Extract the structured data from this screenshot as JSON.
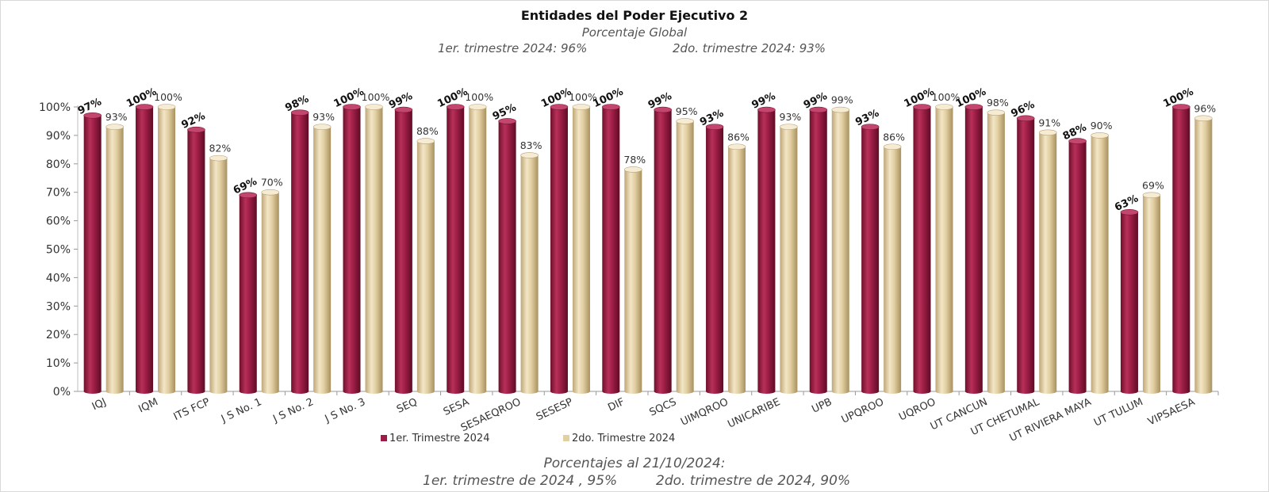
{
  "header": {
    "title": "Entidades del Poder Ejecutivo 2",
    "subtitle": "Porcentaje Global",
    "summary_q1": "1er. trimestre 2024: 96%",
    "summary_q2": "2do. trimestre 2024: 93%"
  },
  "footer": {
    "title": "Porcentajes al 21/10/2024:",
    "q1": "1er. trimestre de 2024 , 95%",
    "q2": "2do. trimestre de 2024, 90%"
  },
  "chart_data": {
    "type": "bar",
    "categories": [
      "IQJ",
      "IQM",
      "ITS FCP",
      "J S No. 1",
      "J S No. 2",
      "J S No. 3",
      "SEQ",
      "SESA",
      "SESAEQROO",
      "SESESP",
      "DIF",
      "SQCS",
      "UIMQROO",
      "UNICARIBE",
      "UPB",
      "UPQROO",
      "UQROO",
      "UT CANCUN",
      "UT CHETUMAL",
      "UT RIVIERA MAYA",
      "UT TULUM",
      "VIPSAESA"
    ],
    "series": [
      {
        "name": "1er. Trimestre 2024",
        "color": "#9b1d45",
        "values": [
          97,
          100,
          92,
          69,
          98,
          100,
          99,
          100,
          95,
          100,
          100,
          99,
          93,
          99,
          99,
          93,
          100,
          100,
          96,
          88,
          63,
          100
        ],
        "labels": [
          "97%",
          "100%",
          "92%",
          "69%",
          "98%",
          "100%",
          "99%",
          "100%",
          "95%",
          "100%",
          "100%",
          "99%",
          "93%",
          "99%",
          "99%",
          "93%",
          "100%",
          "100%",
          "96%",
          "88%",
          "63%",
          "100%"
        ]
      },
      {
        "name": "2do. Trimestre 2024",
        "color": "#e2cfa2",
        "values": [
          93,
          100,
          82,
          70,
          93,
          100,
          88,
          100,
          83,
          100,
          78,
          95,
          86,
          93,
          99,
          86,
          100,
          98,
          91,
          90,
          69,
          96
        ],
        "labels": [
          "93%",
          "100%",
          "82%",
          "70%",
          "93%",
          "100%",
          "88%",
          "100%",
          "83%",
          "100%",
          "78%",
          "95%",
          "86%",
          "93%",
          "99%",
          "86%",
          "100%",
          "98%",
          "91%",
          "90%",
          "69%",
          "96%"
        ]
      }
    ],
    "y_ticks": [
      "0%",
      "10%",
      "20%",
      "30%",
      "40%",
      "50%",
      "60%",
      "70%",
      "80%",
      "90%",
      "100%"
    ],
    "ylim": [
      0,
      100
    ],
    "grid": false,
    "legend": "bottom"
  }
}
